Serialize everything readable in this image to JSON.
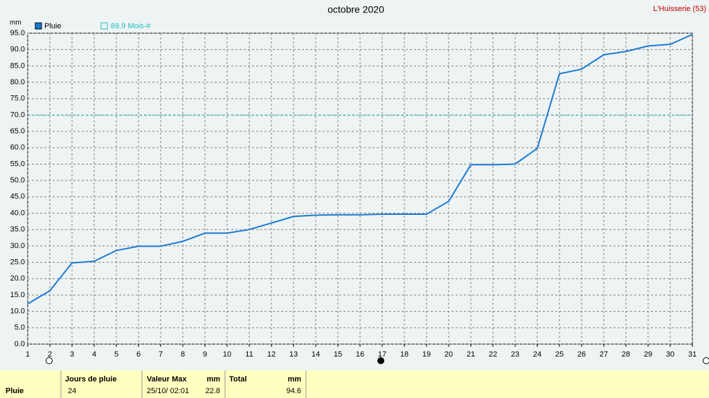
{
  "chart_data": {
    "type": "line",
    "title": "octobre 2020",
    "station": "L'Huisserie (53)",
    "y_unit": "mm",
    "x": [
      1,
      2,
      3,
      4,
      5,
      6,
      7,
      8,
      9,
      10,
      11,
      12,
      13,
      14,
      15,
      16,
      17,
      18,
      19,
      20,
      21,
      22,
      23,
      24,
      25,
      26,
      27,
      28,
      29,
      30,
      31
    ],
    "xlim": [
      1,
      31
    ],
    "xticks": [
      1,
      2,
      3,
      4,
      5,
      6,
      7,
      8,
      9,
      10,
      11,
      12,
      13,
      14,
      15,
      16,
      17,
      18,
      19,
      20,
      21,
      22,
      23,
      24,
      25,
      26,
      27,
      28,
      29,
      30,
      31
    ],
    "series": [
      {
        "name": "Pluie",
        "color": "#1a7ad4",
        "values": [
          12.3,
          16.3,
          24.8,
          25.3,
          28.6,
          29.9,
          29.9,
          31.4,
          33.9,
          33.9,
          35.0,
          37.0,
          39.0,
          39.4,
          39.5,
          39.5,
          39.7,
          39.7,
          39.7,
          43.6,
          54.8,
          54.8,
          55.0,
          59.8,
          82.6,
          84.0,
          88.4,
          89.4,
          91.1,
          91.6,
          94.6
        ]
      }
    ],
    "reference": {
      "value": 69.9,
      "label": "69.9 Mois-#",
      "color": "#20c0c0"
    },
    "ylim": [
      0,
      95
    ],
    "yticks": [
      {
        "value": 0,
        "label": "0.0"
      },
      {
        "value": 5,
        "label": "5.0"
      },
      {
        "value": 10,
        "label": "10.0"
      },
      {
        "value": 15,
        "label": "15.0"
      },
      {
        "value": 20,
        "label": "20.0"
      },
      {
        "value": 25,
        "label": "25.0"
      },
      {
        "value": 30,
        "label": "30.0"
      },
      {
        "value": 35,
        "label": "35.0"
      },
      {
        "value": 40,
        "label": "40.0"
      },
      {
        "value": 45,
        "label": "45.0"
      },
      {
        "value": 50,
        "label": "50.0"
      },
      {
        "value": 55,
        "label": "55.0"
      },
      {
        "value": 60,
        "label": "60.0"
      },
      {
        "value": 65,
        "label": "65.0"
      },
      {
        "value": 70,
        "label": "70.0"
      },
      {
        "value": 75,
        "label": "75.0"
      },
      {
        "value": 80,
        "label": "80.0"
      },
      {
        "value": 85,
        "label": "85.0"
      },
      {
        "value": 90,
        "label": "90.0"
      },
      {
        "value": 95,
        "label": "95.0"
      }
    ],
    "grid": true
  },
  "summary": {
    "row_label": "Pluie",
    "headers": [
      "Jours de pluie",
      "Valeur Max",
      "mm",
      "Total",
      "mm"
    ],
    "values": [
      "24",
      "25/10/ 02:01",
      "22.8",
      "94.6"
    ]
  }
}
